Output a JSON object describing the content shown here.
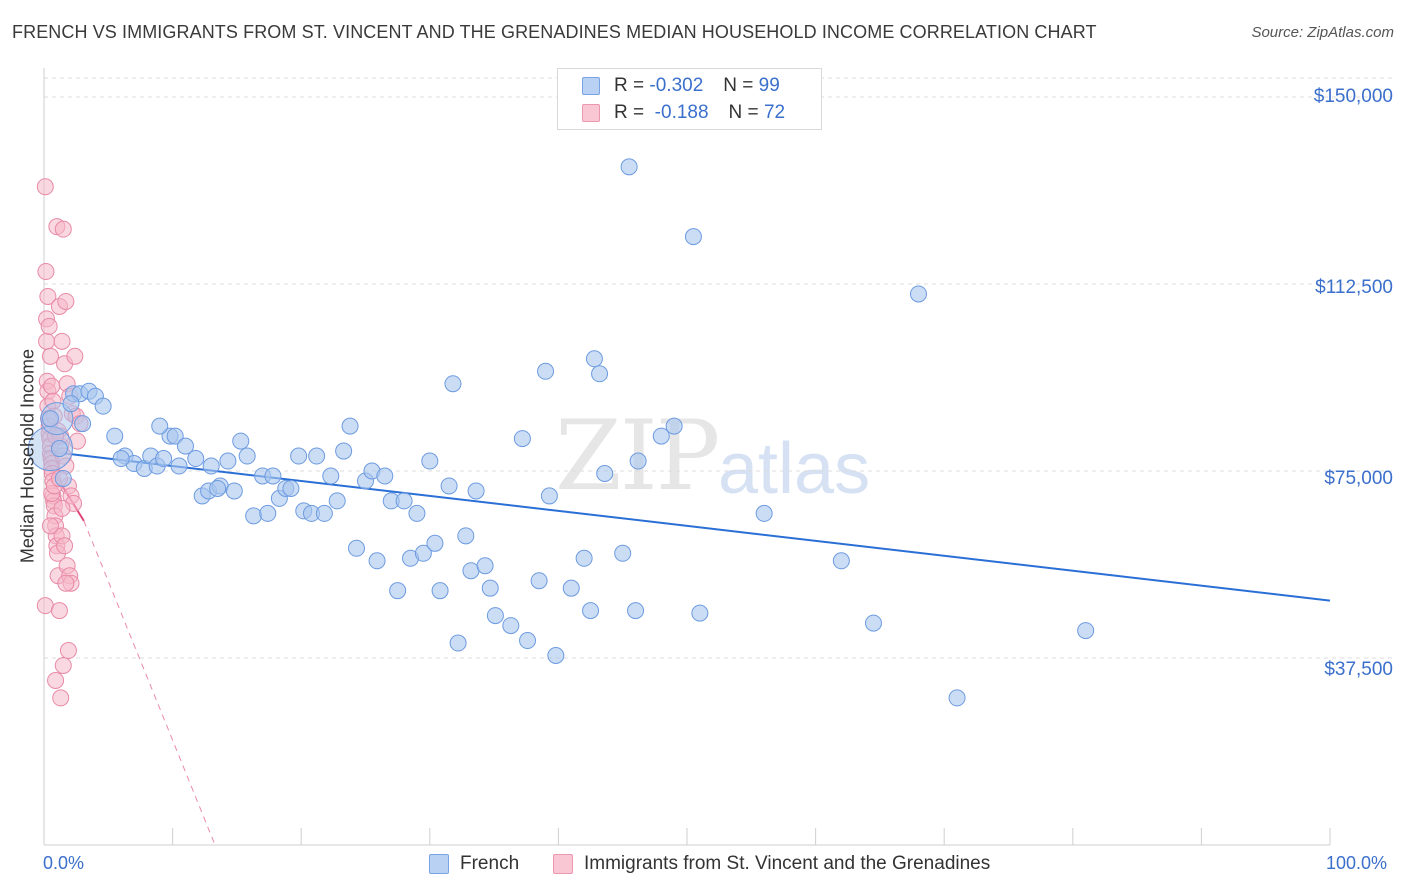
{
  "title": "FRENCH VS IMMIGRANTS FROM ST. VINCENT AND THE GRENADINES MEDIAN HOUSEHOLD INCOME CORRELATION CHART",
  "source": "Source: ZipAtlas.com",
  "watermark": {
    "zip": "ZIP",
    "atlas": "atlas"
  },
  "legend": {
    "rows": [
      {
        "r_label": "R =",
        "r_value": "-0.302",
        "n_label": "N =",
        "n_value": "99"
      },
      {
        "r_label": "R =",
        "r_value": "-0.188",
        "n_label": "N =",
        "n_value": "72"
      }
    ]
  },
  "bottom_legend": {
    "french": "French",
    "immigrants": "Immigrants from St. Vincent and the Grenadines"
  },
  "colors": {
    "blue_fill": "#a9c6ee",
    "blue_stroke": "#6d9be0",
    "blue_line": "#2a6fd6",
    "pink_fill": "#f6b8c9",
    "pink_stroke": "#e88aa6",
    "pink_line": "#e0457a",
    "axis_text": "#3b6fcc"
  },
  "chart_data": {
    "type": "scatter",
    "title": "FRENCH VS IMMIGRANTS FROM ST. VINCENT AND THE GRENADINES MEDIAN HOUSEHOLD INCOME CORRELATION CHART",
    "xlabel": "",
    "ylabel": "Median Household Income",
    "xlim": [
      0,
      100
    ],
    "ylim": [
      0,
      150000
    ],
    "x_tick_labels": [
      "0.0%",
      "100.0%"
    ],
    "y_ticks": [
      37500,
      75000,
      112500,
      150000
    ],
    "y_tick_labels": [
      "$37,500",
      "$75,000",
      "$112,500",
      "$150,000"
    ],
    "grid": true,
    "series": [
      {
        "name": "French",
        "trend": {
          "x0": 0,
          "y0": 79000,
          "x1": 100,
          "y1": 49000,
          "style": "solid"
        },
        "points": [
          [
            0.5,
            85500
          ],
          [
            1.2,
            79500
          ],
          [
            1.5,
            73500
          ],
          [
            2.3,
            90500
          ],
          [
            2.8,
            90500
          ],
          [
            3.5,
            91000
          ],
          [
            4,
            90000
          ],
          [
            4.6,
            88000
          ],
          [
            5.5,
            82000
          ],
          [
            6.3,
            78000
          ],
          [
            7,
            76500
          ],
          [
            7.8,
            75500
          ],
          [
            8.3,
            78000
          ],
          [
            8.8,
            76000
          ],
          [
            9.3,
            77500
          ],
          [
            9.8,
            82000
          ],
          [
            10.2,
            82000
          ],
          [
            10.5,
            76000
          ],
          [
            11,
            80000
          ],
          [
            11.8,
            77500
          ],
          [
            12.3,
            70000
          ],
          [
            12.8,
            71000
          ],
          [
            13,
            76000
          ],
          [
            13.7,
            72000
          ],
          [
            14.3,
            77000
          ],
          [
            14.8,
            71000
          ],
          [
            15.3,
            81000
          ],
          [
            15.8,
            78000
          ],
          [
            16.3,
            66000
          ],
          [
            17,
            74000
          ],
          [
            17.4,
            66500
          ],
          [
            17.8,
            74000
          ],
          [
            18.3,
            69500
          ],
          [
            18.8,
            71500
          ],
          [
            19.2,
            71500
          ],
          [
            19.8,
            78000
          ],
          [
            20.2,
            67000
          ],
          [
            20.8,
            66500
          ],
          [
            21.2,
            78000
          ],
          [
            21.8,
            66500
          ],
          [
            22.3,
            74000
          ],
          [
            22.8,
            69000
          ],
          [
            23.3,
            79000
          ],
          [
            23.8,
            84000
          ],
          [
            24.3,
            59500
          ],
          [
            25,
            73000
          ],
          [
            25.5,
            75000
          ],
          [
            25.9,
            57000
          ],
          [
            26.5,
            74000
          ],
          [
            27,
            69000
          ],
          [
            27.5,
            51000
          ],
          [
            28,
            69000
          ],
          [
            28.5,
            57500
          ],
          [
            29,
            66500
          ],
          [
            29.5,
            58500
          ],
          [
            30,
            77000
          ],
          [
            30.4,
            60500
          ],
          [
            30.8,
            51000
          ],
          [
            31.5,
            72000
          ],
          [
            31.8,
            92500
          ],
          [
            32.2,
            40500
          ],
          [
            32.8,
            62000
          ],
          [
            33.2,
            55000
          ],
          [
            33.6,
            71000
          ],
          [
            34.3,
            56000
          ],
          [
            34.7,
            51500
          ],
          [
            35.1,
            46000
          ],
          [
            36.3,
            44000
          ],
          [
            37.2,
            81500
          ],
          [
            37.6,
            41000
          ],
          [
            38.5,
            53000
          ],
          [
            39,
            95000
          ],
          [
            39.3,
            70000
          ],
          [
            39.8,
            38000
          ],
          [
            41,
            51500
          ],
          [
            42,
            57500
          ],
          [
            42.5,
            47000
          ],
          [
            42.8,
            97500
          ],
          [
            43.2,
            94500
          ],
          [
            43.6,
            74500
          ],
          [
            45,
            58500
          ],
          [
            45.5,
            136000
          ],
          [
            46,
            47000
          ],
          [
            46.2,
            77000
          ],
          [
            48,
            82000
          ],
          [
            49,
            84000
          ],
          [
            50.5,
            122000
          ],
          [
            51,
            46500
          ],
          [
            56,
            66500
          ],
          [
            62,
            57000
          ],
          [
            64.5,
            44500
          ],
          [
            68,
            110500
          ],
          [
            71,
            29500
          ],
          [
            81,
            43000
          ],
          [
            2.1,
            88500
          ],
          [
            3,
            84500
          ],
          [
            6,
            77500
          ],
          [
            9,
            84000
          ],
          [
            13.5,
            71500
          ]
        ]
      },
      {
        "name": "Immigrants from St. Vincent and the Grenadines",
        "trend": {
          "x0": 0,
          "y0": 78000,
          "x1": 3.1,
          "y1": 65000,
          "style": "solid",
          "extend_to": {
            "x": 13.3,
            "y": 0,
            "style": "dashed"
          }
        },
        "points": [
          [
            0.1,
            132000
          ],
          [
            0.15,
            115000
          ],
          [
            0.2,
            105500
          ],
          [
            0.2,
            101000
          ],
          [
            0.25,
            93000
          ],
          [
            0.3,
            91000
          ],
          [
            0.3,
            88000
          ],
          [
            0.35,
            85500
          ],
          [
            0.4,
            84000
          ],
          [
            0.4,
            82500
          ],
          [
            0.45,
            81500
          ],
          [
            0.5,
            80000
          ],
          [
            0.5,
            78500
          ],
          [
            0.55,
            77500
          ],
          [
            0.6,
            76500
          ],
          [
            0.6,
            75500
          ],
          [
            0.65,
            74500
          ],
          [
            0.7,
            73000
          ],
          [
            0.7,
            70000
          ],
          [
            0.75,
            69000
          ],
          [
            0.8,
            68000
          ],
          [
            0.85,
            66000
          ],
          [
            0.9,
            64000
          ],
          [
            0.95,
            62000
          ],
          [
            1,
            60000
          ],
          [
            1.05,
            58500
          ],
          [
            0.1,
            48000
          ],
          [
            1.1,
            54000
          ],
          [
            1.2,
            47000
          ],
          [
            0.3,
            110000
          ],
          [
            0.4,
            104000
          ],
          [
            0.5,
            98000
          ],
          [
            0.6,
            92000
          ],
          [
            0.7,
            89000
          ],
          [
            0.8,
            86000
          ],
          [
            1,
            124000
          ],
          [
            1.2,
            108000
          ],
          [
            1.4,
            101000
          ],
          [
            1.6,
            96500
          ],
          [
            1.8,
            92500
          ],
          [
            2,
            90000
          ],
          [
            2.2,
            86500
          ],
          [
            2.5,
            86000
          ],
          [
            2.8,
            84500
          ],
          [
            1.5,
            123500
          ],
          [
            1.7,
            109000
          ],
          [
            2.4,
            98000
          ],
          [
            1.3,
            80000
          ],
          [
            1.5,
            78000
          ],
          [
            1.7,
            76000
          ],
          [
            1.9,
            72000
          ],
          [
            2.1,
            70000
          ],
          [
            2.3,
            68500
          ],
          [
            1.4,
            62000
          ],
          [
            1.6,
            60000
          ],
          [
            1.8,
            56000
          ],
          [
            2,
            54000
          ],
          [
            2.1,
            52500
          ],
          [
            1.7,
            52500
          ],
          [
            1.5,
            36000
          ],
          [
            1.3,
            29500
          ],
          [
            1.9,
            39000
          ],
          [
            0.9,
            33000
          ],
          [
            0.6,
            70500
          ],
          [
            0.8,
            72000
          ],
          [
            1.1,
            83000
          ],
          [
            1.3,
            82000
          ],
          [
            0.5,
            64000
          ],
          [
            0.9,
            82000
          ],
          [
            1.2,
            73500
          ],
          [
            1.4,
            67500
          ],
          [
            2.6,
            81000
          ]
        ]
      }
    ]
  }
}
